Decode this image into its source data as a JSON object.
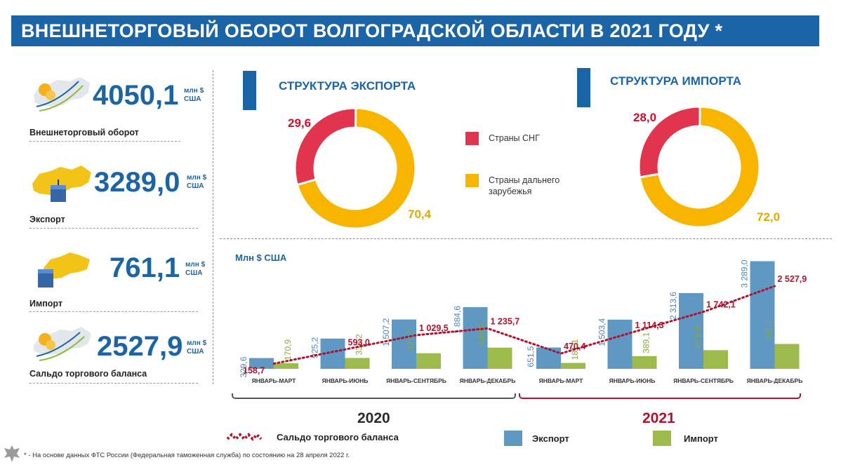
{
  "header": {
    "title": "ВНЕШНЕТОРГОВЫЙ ОБОРОТ ВОЛГОГРАДСКОЙ ОБЛАСТИ В 2021 ГОДУ *"
  },
  "kpis": [
    {
      "value": "4050,1",
      "unit_line1": "млн $",
      "unit_line2": "США",
      "label": "Внешнеторговый оборот"
    },
    {
      "value": "3289,0",
      "unit_line1": "млн $",
      "unit_line2": "США",
      "label": "Экспорт"
    },
    {
      "value": "761,1",
      "unit_line1": "млн $",
      "unit_line2": "США",
      "label": "Импорт"
    },
    {
      "value": "2527,9",
      "unit_line1": "млн $",
      "unit_line2": "США",
      "label": "Сальдо торгового баланса"
    }
  ],
  "colors": {
    "brand_blue": "#1b65a6",
    "cis_red": "#e0344f",
    "far_abroad_yellow": "#f7b500",
    "export_bar": "#5f98c2",
    "import_bar": "#9dbb4c",
    "balance_line": "#b0122e"
  },
  "chart_data": [
    {
      "type": "pie",
      "title": "СТРУКТУРА ЭКСПОРТА",
      "slices": [
        {
          "name": "Страны СНГ",
          "value": 29.6,
          "label": "29,6",
          "color": "#e0344f"
        },
        {
          "name": "Страны дальнего зарубежья",
          "value": 70.4,
          "label": "70,4",
          "color": "#f7b500"
        }
      ],
      "legend_position": "right"
    },
    {
      "type": "pie",
      "title": "СТРУКТУРА ИМПОРТА",
      "slices": [
        {
          "name": "Страны СНГ",
          "value": 28.0,
          "label": "28,0",
          "color": "#e0344f"
        },
        {
          "name": "Страны дальнего зарубежья",
          "value": 72.0,
          "label": "72,0",
          "color": "#f7b500"
        }
      ]
    },
    {
      "type": "bar",
      "ylabel": "Млн $ США",
      "categories": [
        "ЯНВАРЬ-МАРТ",
        "ЯНВАРЬ-ИЮНЬ",
        "ЯНВАРЬ-СЕНТЯБРЬ",
        "ЯНВАРЬ-ДЕКАБРЬ",
        "ЯНВАРЬ-МАРТ",
        "ЯНВАРЬ-ИЮНЬ",
        "ЯНВАРЬ-СЕНТЯБРЬ",
        "ЯНВАРЬ-ДЕКАБРЬ"
      ],
      "groups": [
        {
          "name": "2020",
          "from": 0,
          "to": 3
        },
        {
          "name": "2021",
          "from": 4,
          "to": 7
        }
      ],
      "series": [
        {
          "name": "Экспорт",
          "color": "#5f98c2",
          "values": [
            329.6,
            925.2,
            1507.2,
            1884.6,
            651.5,
            1503.4,
            2313.6,
            3289.0
          ],
          "labels": [
            "329,6",
            "925,2",
            "1 507,2",
            "1 884,6",
            "651,5",
            "1 503,4",
            "2 313,6",
            "3 289,0"
          ]
        },
        {
          "name": "Импорт",
          "color": "#9dbb4c",
          "values": [
            170.9,
            332.2,
            477.7,
            648.8,
            181.1,
            389.1,
            571.6,
            761.1
          ],
          "labels": [
            "170,9",
            "332,2",
            "477,7",
            "648,8",
            "181,1",
            "389,1",
            "571,6",
            "761,1"
          ]
        },
        {
          "name": "Сальдо торгового баланса",
          "type": "line",
          "style": "dotted",
          "color": "#b0122e",
          "values": [
            158.7,
            593.0,
            1029.5,
            1235.7,
            470.4,
            1114.3,
            1742.1,
            2527.9
          ],
          "labels": [
            "158,7",
            "593,0",
            "1 029,5",
            "1 235,7",
            "470,4",
            "1 114,3",
            "1 742,1",
            "2 527,9"
          ]
        }
      ],
      "ylim": [
        0,
        3300
      ],
      "grid": false,
      "legend_position": "bottom"
    }
  ],
  "footnote": "* - На основе данных ФТС России (Федеральная таможенная служба) по состоянию на  28 апреля 2022 г."
}
